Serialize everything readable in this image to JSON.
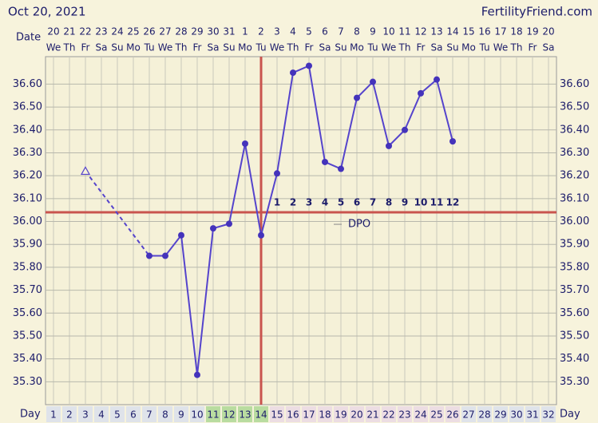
{
  "chart_data": {
    "type": "line",
    "title": "Oct 20, 2021",
    "site": "FertilityFriend.com",
    "date_label": "Date",
    "day_label": "Day",
    "dates": [
      20,
      21,
      22,
      23,
      24,
      25,
      26,
      27,
      28,
      29,
      30,
      31,
      1,
      2,
      3,
      4,
      5,
      6,
      7,
      8,
      9,
      10,
      11,
      12,
      13,
      14,
      15,
      16,
      17,
      18,
      19,
      20
    ],
    "weekdays": [
      "We",
      "Th",
      "Fr",
      "Sa",
      "Su",
      "Mo",
      "Tu",
      "We",
      "Th",
      "Fr",
      "Sa",
      "Su",
      "Mo",
      "Tu",
      "We",
      "Th",
      "Fr",
      "Sa",
      "Su",
      "Mo",
      "Tu",
      "We",
      "Th",
      "Fr",
      "Sa",
      "Su",
      "Mo",
      "Tu",
      "We",
      "Th",
      "Fr",
      "Sa"
    ],
    "x": [
      1,
      2,
      3,
      4,
      5,
      6,
      7,
      8,
      9,
      10,
      11,
      12,
      13,
      14,
      15,
      16,
      17,
      18,
      19,
      20,
      21,
      22,
      23,
      24,
      25,
      26,
      27,
      28,
      29,
      30,
      31,
      32
    ],
    "values": [
      null,
      null,
      null,
      null,
      null,
      null,
      35.85,
      35.85,
      35.94,
      35.33,
      35.97,
      35.99,
      36.34,
      35.94,
      36.21,
      36.65,
      36.68,
      36.26,
      36.23,
      36.54,
      36.61,
      36.33,
      36.4,
      36.56,
      36.62,
      36.35,
      null,
      null,
      null,
      null,
      null,
      null
    ],
    "discarded": {
      "x": 3,
      "value": 36.22
    },
    "color": "#5544cc",
    "coverline": 36.04,
    "coverline_color": "#c9544e",
    "ovulation_day": 14,
    "fertile_window": [
      11,
      14
    ],
    "dpo_label": "DPO",
    "dpo_labels": [
      null,
      null,
      null,
      null,
      null,
      null,
      null,
      null,
      null,
      null,
      null,
      null,
      null,
      null,
      1,
      2,
      3,
      4,
      5,
      6,
      7,
      8,
      9,
      10,
      11,
      12,
      null,
      null,
      null,
      null,
      null,
      null
    ],
    "ylim": [
      35.2,
      36.72
    ],
    "yticks": [
      {
        "value": 35.3,
        "label": "35.30"
      },
      {
        "value": 35.4,
        "label": "35.40"
      },
      {
        "value": 35.5,
        "label": "35.50"
      },
      {
        "value": 35.6,
        "label": "35.60"
      },
      {
        "value": 35.7,
        "label": "35.70"
      },
      {
        "value": 35.8,
        "label": "35.80"
      },
      {
        "value": 35.9,
        "label": "35.90"
      },
      {
        "value": 36.0,
        "label": "36.00"
      },
      {
        "value": 36.1,
        "label": "36.10"
      },
      {
        "value": 36.2,
        "label": "36.20"
      },
      {
        "value": 36.3,
        "label": "36.30"
      },
      {
        "value": 36.4,
        "label": "36.40"
      },
      {
        "value": 36.5,
        "label": "36.50"
      },
      {
        "value": 36.6,
        "label": "36.60"
      }
    ],
    "grid": true
  }
}
